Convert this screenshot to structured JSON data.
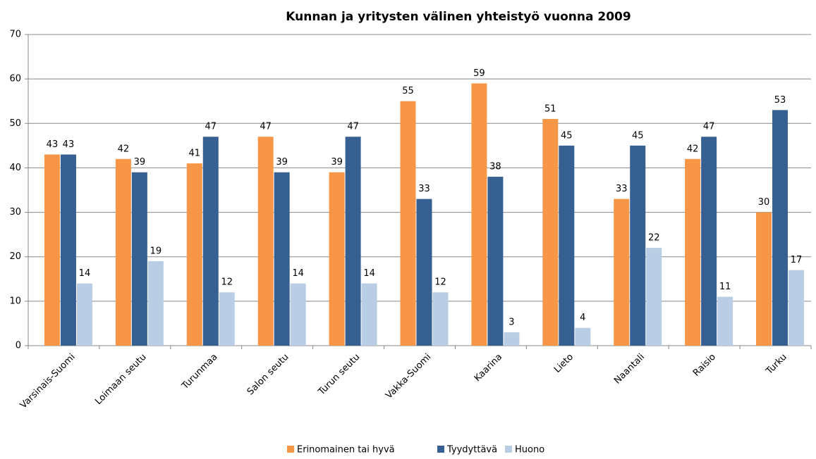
{
  "chart_data": {
    "type": "bar",
    "title": "Kunnan ja yritysten välinen yhteistyö vuonna 2009",
    "categories": [
      "Varsinais-Suomi",
      "Loimaan seutu",
      "Turunmaa",
      "Salon seutu",
      "Turun seutu",
      "Vakka-Suomi",
      "Kaarina",
      "Lieto",
      "Naantali",
      "Raisio",
      "Turku"
    ],
    "series": [
      {
        "name": "Erinomainen tai hyvä",
        "color": "#f79646",
        "values": [
          43,
          42,
          41,
          47,
          39,
          55,
          59,
          51,
          33,
          42,
          30
        ]
      },
      {
        "name": "Tyydyttävä",
        "color": "#376092",
        "values": [
          43,
          39,
          47,
          39,
          47,
          33,
          38,
          45,
          45,
          47,
          53
        ]
      },
      {
        "name": "Huono",
        "color": "#b9cde5",
        "values": [
          14,
          19,
          12,
          14,
          14,
          12,
          3,
          4,
          22,
          11,
          17
        ]
      }
    ],
    "ylim": [
      0,
      70
    ],
    "yticks": [
      0,
      10,
      20,
      30,
      40,
      50,
      60,
      70
    ],
    "grid": true,
    "legend": "bottom"
  }
}
